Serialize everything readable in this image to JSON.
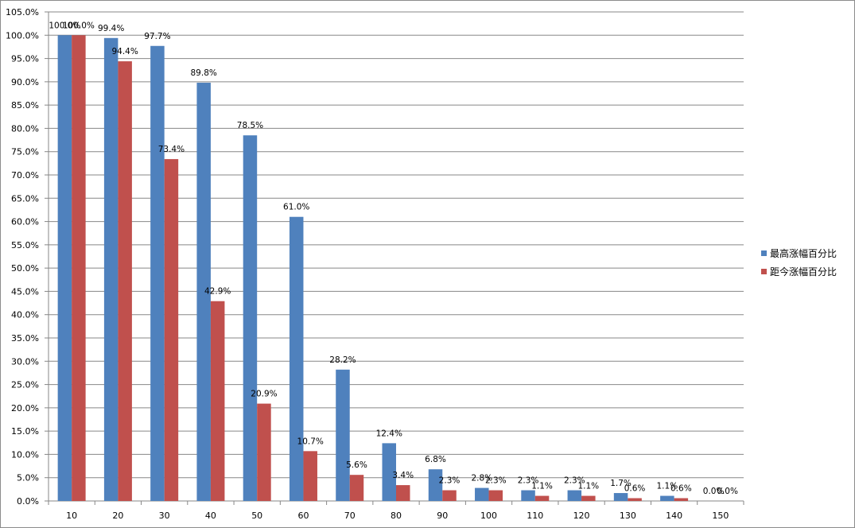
{
  "chart_data": {
    "type": "bar",
    "categories": [
      "10",
      "20",
      "30",
      "40",
      "50",
      "60",
      "70",
      "80",
      "90",
      "100",
      "110",
      "120",
      "130",
      "140",
      "150"
    ],
    "series": [
      {
        "name": "最高涨幅百分比",
        "color": "#4f81bd",
        "values": [
          100.0,
          99.4,
          97.7,
          89.8,
          78.5,
          61.0,
          28.2,
          12.4,
          6.8,
          2.8,
          2.3,
          2.3,
          1.7,
          1.1,
          0.0
        ],
        "labels": [
          "100.0%",
          "99.4%",
          "97.7%",
          "89.8%",
          "78.5%",
          "61.0%",
          "28.2%",
          "12.4%",
          "6.8%",
          "2.8%",
          "2.3%",
          "2.3%",
          "1.7%",
          "1.1%",
          "0.0%"
        ]
      },
      {
        "name": "距今涨幅百分比",
        "color": "#c0504d",
        "values": [
          100.0,
          94.4,
          73.4,
          42.9,
          20.9,
          10.7,
          5.6,
          3.4,
          2.3,
          2.3,
          1.1,
          1.1,
          0.6,
          0.6,
          0.0
        ],
        "labels": [
          "100.0%",
          "94.4%",
          "73.4%",
          "42.9%",
          "20.9%",
          "10.7%",
          "5.6%",
          "3.4%",
          "2.3%",
          "2.3%",
          "1.1%",
          "1.1%",
          "0.6%",
          "0.6%",
          "0.0%"
        ]
      }
    ],
    "ylim": [
      0,
      105
    ],
    "ystep": 5,
    "ytick_labels": [
      "0.0%",
      "5.0%",
      "10.0%",
      "15.0%",
      "20.0%",
      "25.0%",
      "30.0%",
      "35.0%",
      "40.0%",
      "45.0%",
      "50.0%",
      "55.0%",
      "60.0%",
      "65.0%",
      "70.0%",
      "75.0%",
      "80.0%",
      "85.0%",
      "90.0%",
      "95.0%",
      "100.0%",
      "105.0%"
    ],
    "grid": true,
    "legend": "right"
  }
}
